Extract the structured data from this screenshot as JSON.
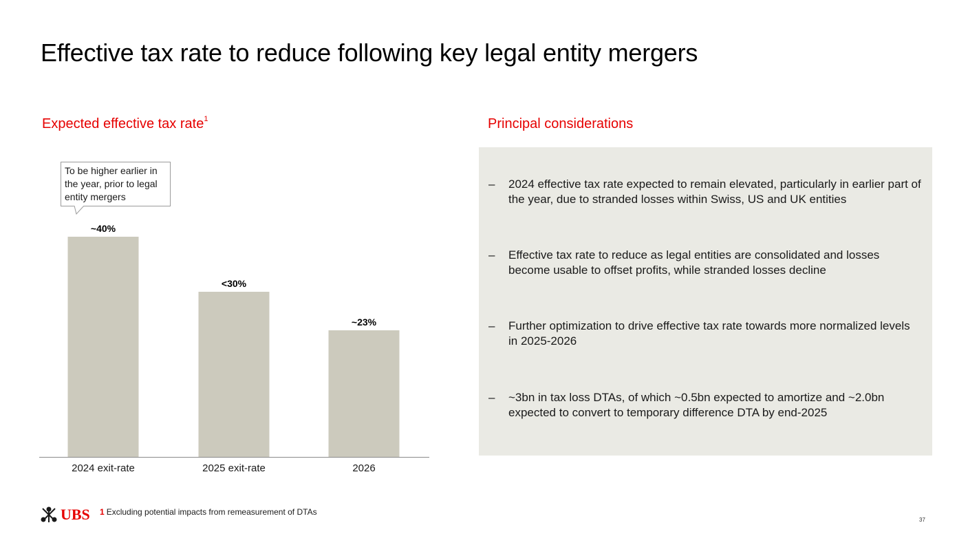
{
  "title": "Effective tax rate to reduce following key legal entity mergers",
  "left_section": {
    "heading": "Expected effective tax rate",
    "heading_sup": "1"
  },
  "right_section": {
    "heading": "Principal considerations"
  },
  "callout": "To be higher earlier in the year, prior to legal entity mergers",
  "bullets": [
    {
      "dash": "–",
      "text": "2024 effective tax rate expected to remain elevated, particularly in earlier part of the year, due to stranded losses within Swiss, US and UK entities"
    },
    {
      "dash": "–",
      "text": "Effective tax rate to reduce as legal entities are consolidated and losses become usable to offset profits, while stranded losses decline"
    },
    {
      "dash": "–",
      "text": "Further optimization to drive effective tax rate towards more normalized levels in 2025-2026"
    },
    {
      "dash": "–",
      "text": "~3bn in tax loss DTAs, of which ~0.5bn expected to amortize and ~2.0bn expected to convert to temporary difference DTA by end-2025"
    }
  ],
  "chart_data": {
    "type": "bar",
    "categories": [
      "2024 exit-rate",
      "2025 exit-rate",
      "2026"
    ],
    "values": [
      40,
      30,
      23
    ],
    "data_labels": [
      "~40%",
      "<30%",
      "~23%"
    ],
    "title": "",
    "xlabel": "",
    "ylabel": "",
    "ylim": [
      0,
      40
    ],
    "bar_color": "#cccabd",
    "grid": false
  },
  "footer": {
    "logo_text": "UBS",
    "footnote_num": "1",
    "footnote_text": "Excluding potential impacts from remeasurement of DTAs",
    "page_number": "37"
  },
  "colors": {
    "accent": "#e60000",
    "panel_bg": "#eaeae4",
    "bar": "#cccabd"
  }
}
